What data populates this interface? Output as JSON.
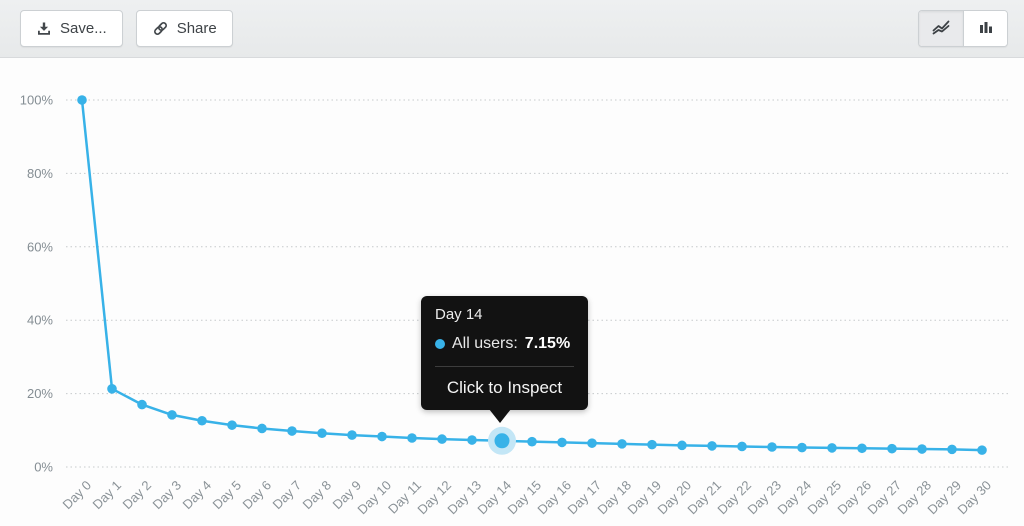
{
  "toolbar": {
    "save_label": "Save...",
    "share_label": "Share",
    "chart_type": {
      "selected": "line",
      "options": [
        "line",
        "bar"
      ]
    }
  },
  "colors": {
    "accent_blue": "#38b2e8",
    "point_halo": "#c3e6f6",
    "gridline": "#c6cacc",
    "axis_text": "#868f95",
    "tooltip_bg": "#121212",
    "toolbar_bg": "#e9eaec"
  },
  "tooltip": {
    "title": "Day 14",
    "series_label": "All users:",
    "value": "7.15%",
    "action": "Click to Inspect",
    "highlight_index": 14
  },
  "chart_data": {
    "type": "line",
    "title": "",
    "xlabel": "",
    "ylabel": "",
    "series": [
      {
        "name": "All users",
        "color": "#38b2e8"
      }
    ],
    "categories": [
      "Day 0",
      "Day 1",
      "Day 2",
      "Day 3",
      "Day 4",
      "Day 5",
      "Day 6",
      "Day 7",
      "Day 8",
      "Day 9",
      "Day 10",
      "Day 11",
      "Day 12",
      "Day 13",
      "Day 14",
      "Day 15",
      "Day 16",
      "Day 17",
      "Day 18",
      "Day 19",
      "Day 20",
      "Day 21",
      "Day 22",
      "Day 23",
      "Day 24",
      "Day 25",
      "Day 26",
      "Day 27",
      "Day 28",
      "Day 29",
      "Day 30"
    ],
    "values": [
      100,
      21.3,
      17.0,
      14.2,
      12.6,
      11.4,
      10.5,
      9.8,
      9.2,
      8.7,
      8.3,
      7.9,
      7.6,
      7.35,
      7.15,
      6.9,
      6.7,
      6.5,
      6.3,
      6.1,
      5.9,
      5.75,
      5.6,
      5.45,
      5.3,
      5.2,
      5.1,
      5.0,
      4.9,
      4.8,
      4.6
    ],
    "ylim": [
      0,
      100
    ],
    "yticks": [
      {
        "v": 0,
        "label": "0%"
      },
      {
        "v": 20,
        "label": "20%"
      },
      {
        "v": 40,
        "label": "40%"
      },
      {
        "v": 60,
        "label": "60%"
      },
      {
        "v": 80,
        "label": "80%"
      },
      {
        "v": 100,
        "label": "100%"
      }
    ],
    "grid": "horizontal-dotted",
    "legend": "none"
  }
}
